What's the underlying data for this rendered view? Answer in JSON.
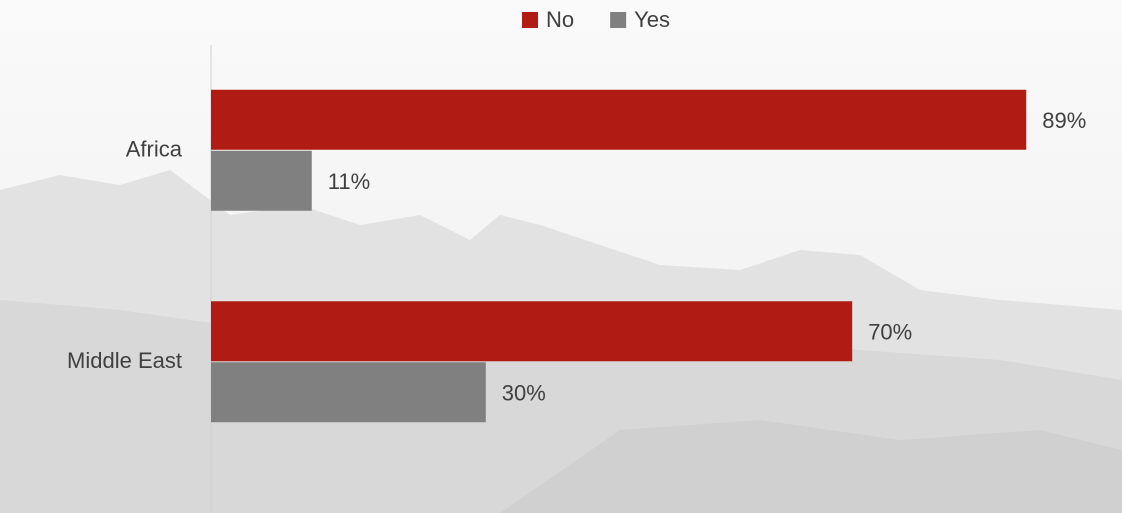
{
  "chart_data": {
    "type": "hbar",
    "categories": [
      "Africa",
      "Middle East"
    ],
    "series": [
      {
        "name": "No",
        "color": "#b01c14",
        "values": [
          89,
          70
        ],
        "value_labels": [
          "89%",
          "70%"
        ]
      },
      {
        "name": "Yes",
        "color": "#808080",
        "values": [
          11,
          30
        ],
        "value_labels": [
          "11%",
          "30%"
        ]
      }
    ],
    "xlim": [
      0,
      100
    ],
    "legend": "top"
  }
}
